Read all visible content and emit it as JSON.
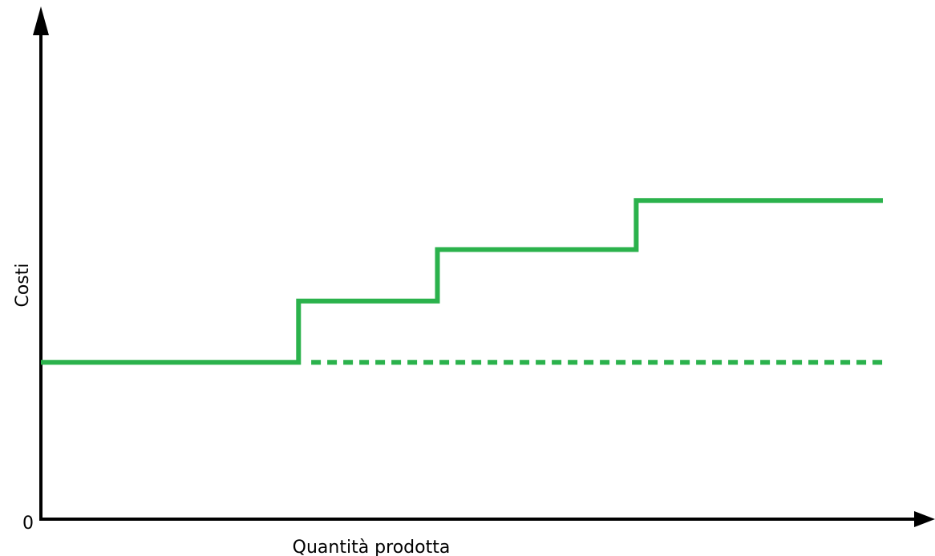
{
  "chart_data": {
    "type": "line",
    "title": "",
    "xlabel": "Quantità prodotta",
    "ylabel": "Costi",
    "origin_label": "0",
    "xlim": [
      0,
      100
    ],
    "ylim": [
      0,
      100
    ],
    "grid": false,
    "legend": "none",
    "color": "#2bb24c",
    "series": [
      {
        "style": "solid-step",
        "x": [
          0,
          30.6,
          30.6,
          47.1,
          47.1,
          70.7,
          70.7,
          100
        ],
        "y": [
          32,
          32,
          44.5,
          44.5,
          55,
          55,
          65,
          65
        ]
      },
      {
        "style": "dashed",
        "x": [
          32.1,
          100
        ],
        "y": [
          32,
          32
        ]
      }
    ]
  }
}
